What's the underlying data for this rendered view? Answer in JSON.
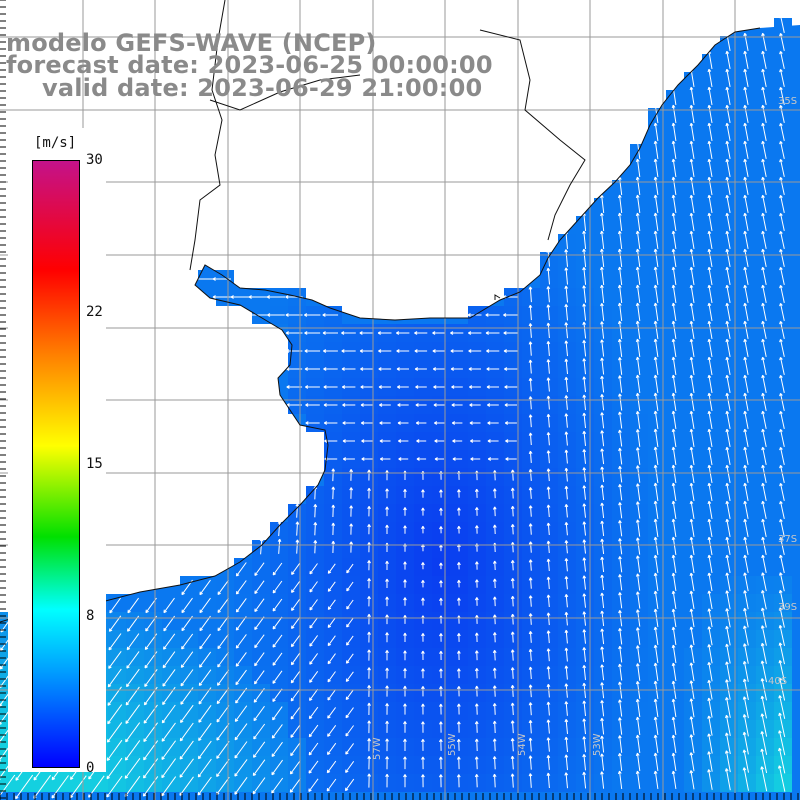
{
  "title": {
    "line1": "modelo GEFS-WAVE (NCEP)",
    "line2": "forecast date: 2023-06-25 00:00:00",
    "line3": "valid date: 2023-06-29 21:00:00"
  },
  "colorbar": {
    "unit": "[m/s]",
    "ticks": [
      "30",
      "22",
      "15",
      "8",
      "0"
    ],
    "tick_values": [
      30,
      22,
      15,
      8,
      0
    ],
    "colors": [
      "#c4128a",
      "#ff0000",
      "#ff8000",
      "#ffff00",
      "#00e000",
      "#00ffff",
      "#00a0ff",
      "#0000ff"
    ]
  },
  "map": {
    "variable": "wind speed",
    "land_color": "#ffffff",
    "grid_color": "#9a9a9a",
    "lat_labels": [
      "35S",
      "37S",
      "39S",
      "40S"
    ],
    "lon_labels": [
      "57W",
      "55W",
      "54W",
      "53W"
    ],
    "ocean_colors": {
      "weak": "#0a3cf0",
      "mid": "#0a78f0",
      "strong": "#14d0e0"
    }
  }
}
